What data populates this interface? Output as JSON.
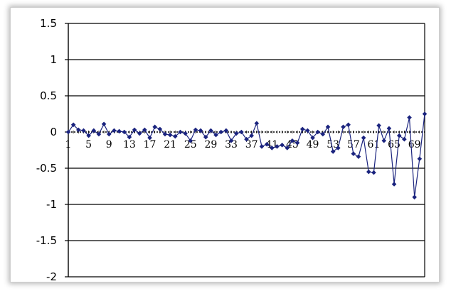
{
  "chart_data": {
    "type": "line",
    "title": "",
    "xlabel": "",
    "ylabel": "",
    "ylim": [
      -2,
      1.5
    ],
    "xlim": [
      1,
      71
    ],
    "y_ticks": [
      1.5,
      1,
      0.5,
      0,
      -0.5,
      -1,
      -1.5,
      -2
    ],
    "y_tick_labels": [
      "1.5",
      "1",
      "0.5",
      "0",
      "-0.5",
      "-1",
      "-1.5",
      "-2"
    ],
    "x_ticks": [
      1,
      5,
      9,
      13,
      17,
      21,
      25,
      29,
      33,
      37,
      41,
      45,
      49,
      53,
      57,
      61,
      65,
      69
    ],
    "x_tick_labels": [
      "1",
      "5",
      "9",
      "13",
      "17",
      "21",
      "25",
      "29",
      "33",
      "37",
      "41",
      "45",
      "49",
      "53",
      "57",
      "61",
      "65",
      "69"
    ],
    "grid": "horizontal",
    "legend": "none",
    "series": [
      {
        "color": "#1a237e",
        "marker": "diamond",
        "x": [
          1,
          2,
          3,
          4,
          5,
          6,
          7,
          8,
          9,
          10,
          11,
          12,
          13,
          14,
          15,
          16,
          17,
          18,
          19,
          20,
          21,
          22,
          23,
          24,
          25,
          26,
          27,
          28,
          29,
          30,
          31,
          32,
          33,
          34,
          35,
          36,
          37,
          38,
          39,
          40,
          41,
          42,
          43,
          44,
          45,
          46,
          47,
          48,
          49,
          50,
          51,
          52,
          53,
          54,
          55,
          56,
          57,
          58,
          59,
          60,
          61,
          62,
          63,
          64,
          65,
          66,
          67,
          68,
          69,
          70,
          71
        ],
        "values": [
          0.0,
          0.1,
          0.03,
          0.02,
          -0.05,
          0.02,
          -0.03,
          0.11,
          -0.03,
          0.02,
          0.01,
          0.0,
          -0.07,
          0.03,
          -0.02,
          0.03,
          -0.08,
          0.07,
          0.04,
          -0.03,
          -0.04,
          -0.06,
          0.0,
          -0.02,
          -0.12,
          0.03,
          0.02,
          -0.07,
          0.02,
          -0.04,
          0.0,
          0.02,
          -0.12,
          -0.02,
          0.0,
          -0.1,
          -0.05,
          0.12,
          -0.2,
          -0.17,
          -0.22,
          -0.2,
          -0.18,
          -0.22,
          -0.12,
          -0.15,
          0.04,
          0.02,
          -0.08,
          0.0,
          -0.03,
          0.07,
          -0.27,
          -0.22,
          0.07,
          0.1,
          -0.3,
          -0.34,
          -0.08,
          -0.55,
          -0.56,
          0.09,
          -0.12,
          0.05,
          -0.72,
          -0.05,
          -0.1,
          0.2,
          -0.9,
          -0.37,
          0.25
        ]
      }
    ]
  }
}
